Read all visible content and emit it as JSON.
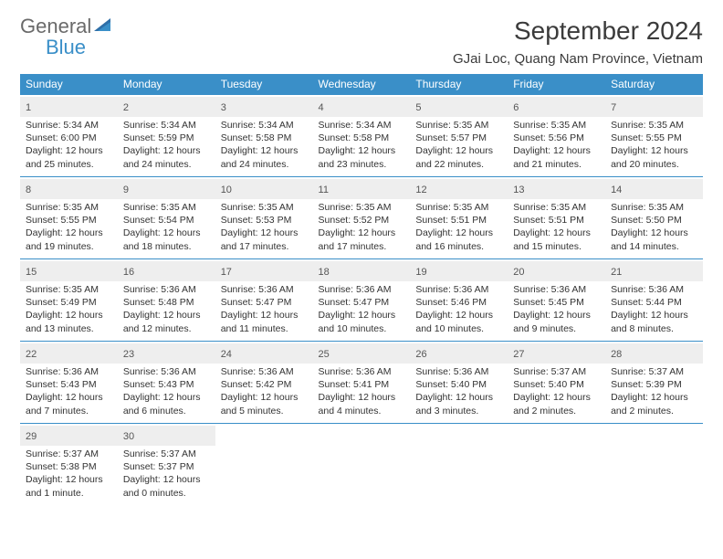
{
  "brand": {
    "word1": "General",
    "word2": "Blue"
  },
  "title": {
    "month": "September 2024",
    "location": "GJai Loc, Quang Nam Province, Vietnam"
  },
  "colors": {
    "accent": "#3a8fc8",
    "header_text": "#ffffff",
    "daystrip": "#eeeeee",
    "text": "#333333",
    "bg": "#ffffff"
  },
  "weekdays": [
    "Sunday",
    "Monday",
    "Tuesday",
    "Wednesday",
    "Thursday",
    "Friday",
    "Saturday"
  ],
  "days": [
    {
      "n": "1",
      "sr": "Sunrise: 5:34 AM",
      "ss": "Sunset: 6:00 PM",
      "d1": "Daylight: 12 hours",
      "d2": "and 25 minutes."
    },
    {
      "n": "2",
      "sr": "Sunrise: 5:34 AM",
      "ss": "Sunset: 5:59 PM",
      "d1": "Daylight: 12 hours",
      "d2": "and 24 minutes."
    },
    {
      "n": "3",
      "sr": "Sunrise: 5:34 AM",
      "ss": "Sunset: 5:58 PM",
      "d1": "Daylight: 12 hours",
      "d2": "and 24 minutes."
    },
    {
      "n": "4",
      "sr": "Sunrise: 5:34 AM",
      "ss": "Sunset: 5:58 PM",
      "d1": "Daylight: 12 hours",
      "d2": "and 23 minutes."
    },
    {
      "n": "5",
      "sr": "Sunrise: 5:35 AM",
      "ss": "Sunset: 5:57 PM",
      "d1": "Daylight: 12 hours",
      "d2": "and 22 minutes."
    },
    {
      "n": "6",
      "sr": "Sunrise: 5:35 AM",
      "ss": "Sunset: 5:56 PM",
      "d1": "Daylight: 12 hours",
      "d2": "and 21 minutes."
    },
    {
      "n": "7",
      "sr": "Sunrise: 5:35 AM",
      "ss": "Sunset: 5:55 PM",
      "d1": "Daylight: 12 hours",
      "d2": "and 20 minutes."
    },
    {
      "n": "8",
      "sr": "Sunrise: 5:35 AM",
      "ss": "Sunset: 5:55 PM",
      "d1": "Daylight: 12 hours",
      "d2": "and 19 minutes."
    },
    {
      "n": "9",
      "sr": "Sunrise: 5:35 AM",
      "ss": "Sunset: 5:54 PM",
      "d1": "Daylight: 12 hours",
      "d2": "and 18 minutes."
    },
    {
      "n": "10",
      "sr": "Sunrise: 5:35 AM",
      "ss": "Sunset: 5:53 PM",
      "d1": "Daylight: 12 hours",
      "d2": "and 17 minutes."
    },
    {
      "n": "11",
      "sr": "Sunrise: 5:35 AM",
      "ss": "Sunset: 5:52 PM",
      "d1": "Daylight: 12 hours",
      "d2": "and 17 minutes."
    },
    {
      "n": "12",
      "sr": "Sunrise: 5:35 AM",
      "ss": "Sunset: 5:51 PM",
      "d1": "Daylight: 12 hours",
      "d2": "and 16 minutes."
    },
    {
      "n": "13",
      "sr": "Sunrise: 5:35 AM",
      "ss": "Sunset: 5:51 PM",
      "d1": "Daylight: 12 hours",
      "d2": "and 15 minutes."
    },
    {
      "n": "14",
      "sr": "Sunrise: 5:35 AM",
      "ss": "Sunset: 5:50 PM",
      "d1": "Daylight: 12 hours",
      "d2": "and 14 minutes."
    },
    {
      "n": "15",
      "sr": "Sunrise: 5:35 AM",
      "ss": "Sunset: 5:49 PM",
      "d1": "Daylight: 12 hours",
      "d2": "and 13 minutes."
    },
    {
      "n": "16",
      "sr": "Sunrise: 5:36 AM",
      "ss": "Sunset: 5:48 PM",
      "d1": "Daylight: 12 hours",
      "d2": "and 12 minutes."
    },
    {
      "n": "17",
      "sr": "Sunrise: 5:36 AM",
      "ss": "Sunset: 5:47 PM",
      "d1": "Daylight: 12 hours",
      "d2": "and 11 minutes."
    },
    {
      "n": "18",
      "sr": "Sunrise: 5:36 AM",
      "ss": "Sunset: 5:47 PM",
      "d1": "Daylight: 12 hours",
      "d2": "and 10 minutes."
    },
    {
      "n": "19",
      "sr": "Sunrise: 5:36 AM",
      "ss": "Sunset: 5:46 PM",
      "d1": "Daylight: 12 hours",
      "d2": "and 10 minutes."
    },
    {
      "n": "20",
      "sr": "Sunrise: 5:36 AM",
      "ss": "Sunset: 5:45 PM",
      "d1": "Daylight: 12 hours",
      "d2": "and 9 minutes."
    },
    {
      "n": "21",
      "sr": "Sunrise: 5:36 AM",
      "ss": "Sunset: 5:44 PM",
      "d1": "Daylight: 12 hours",
      "d2": "and 8 minutes."
    },
    {
      "n": "22",
      "sr": "Sunrise: 5:36 AM",
      "ss": "Sunset: 5:43 PM",
      "d1": "Daylight: 12 hours",
      "d2": "and 7 minutes."
    },
    {
      "n": "23",
      "sr": "Sunrise: 5:36 AM",
      "ss": "Sunset: 5:43 PM",
      "d1": "Daylight: 12 hours",
      "d2": "and 6 minutes."
    },
    {
      "n": "24",
      "sr": "Sunrise: 5:36 AM",
      "ss": "Sunset: 5:42 PM",
      "d1": "Daylight: 12 hours",
      "d2": "and 5 minutes."
    },
    {
      "n": "25",
      "sr": "Sunrise: 5:36 AM",
      "ss": "Sunset: 5:41 PM",
      "d1": "Daylight: 12 hours",
      "d2": "and 4 minutes."
    },
    {
      "n": "26",
      "sr": "Sunrise: 5:36 AM",
      "ss": "Sunset: 5:40 PM",
      "d1": "Daylight: 12 hours",
      "d2": "and 3 minutes."
    },
    {
      "n": "27",
      "sr": "Sunrise: 5:37 AM",
      "ss": "Sunset: 5:40 PM",
      "d1": "Daylight: 12 hours",
      "d2": "and 2 minutes."
    },
    {
      "n": "28",
      "sr": "Sunrise: 5:37 AM",
      "ss": "Sunset: 5:39 PM",
      "d1": "Daylight: 12 hours",
      "d2": "and 2 minutes."
    },
    {
      "n": "29",
      "sr": "Sunrise: 5:37 AM",
      "ss": "Sunset: 5:38 PM",
      "d1": "Daylight: 12 hours",
      "d2": "and 1 minute."
    },
    {
      "n": "30",
      "sr": "Sunrise: 5:37 AM",
      "ss": "Sunset: 5:37 PM",
      "d1": "Daylight: 12 hours",
      "d2": "and 0 minutes."
    }
  ],
  "layout": {
    "start_weekday": 0,
    "total_cells": 35
  }
}
